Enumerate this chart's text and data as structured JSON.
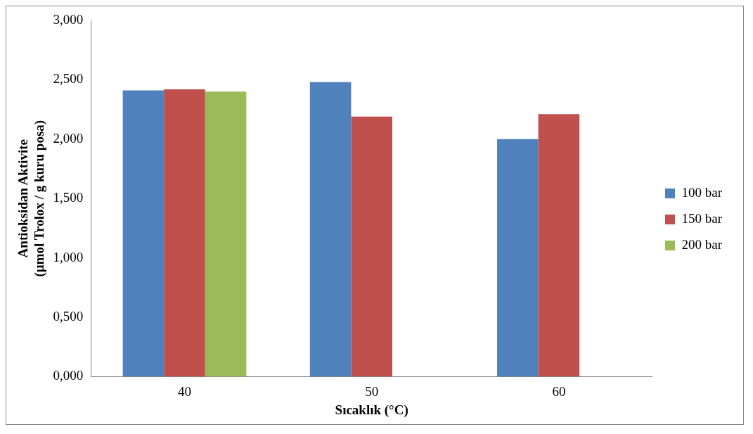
{
  "chart_data": {
    "type": "bar",
    "xlabel": "Sıcaklık (°C)",
    "ylabel": [
      "Antioksidan Aktivite",
      "(µmol Trolox / g kuru posa)"
    ],
    "categories": [
      "40",
      "50",
      "60"
    ],
    "series": [
      {
        "name": "100 bar",
        "color": "#4f81bd",
        "values": [
          2.41,
          2.48,
          2.0
        ]
      },
      {
        "name": "150 bar",
        "color": "#c0504d",
        "values": [
          2.42,
          2.19,
          2.21
        ]
      },
      {
        "name": "200 bar",
        "color": "#9bbb59",
        "values": [
          2.4,
          null,
          null
        ]
      }
    ],
    "ylim": [
      0,
      3
    ],
    "yticks": [
      {
        "value": 0,
        "label": "0,000"
      },
      {
        "value": 0.5,
        "label": "0,500"
      },
      {
        "value": 1,
        "label": "1,000"
      },
      {
        "value": 1.5,
        "label": "1,500"
      },
      {
        "value": 2,
        "label": "2,000"
      },
      {
        "value": 2.5,
        "label": "2,500"
      },
      {
        "value": 3,
        "label": "3,000"
      }
    ],
    "grid": false,
    "legend": "right"
  }
}
